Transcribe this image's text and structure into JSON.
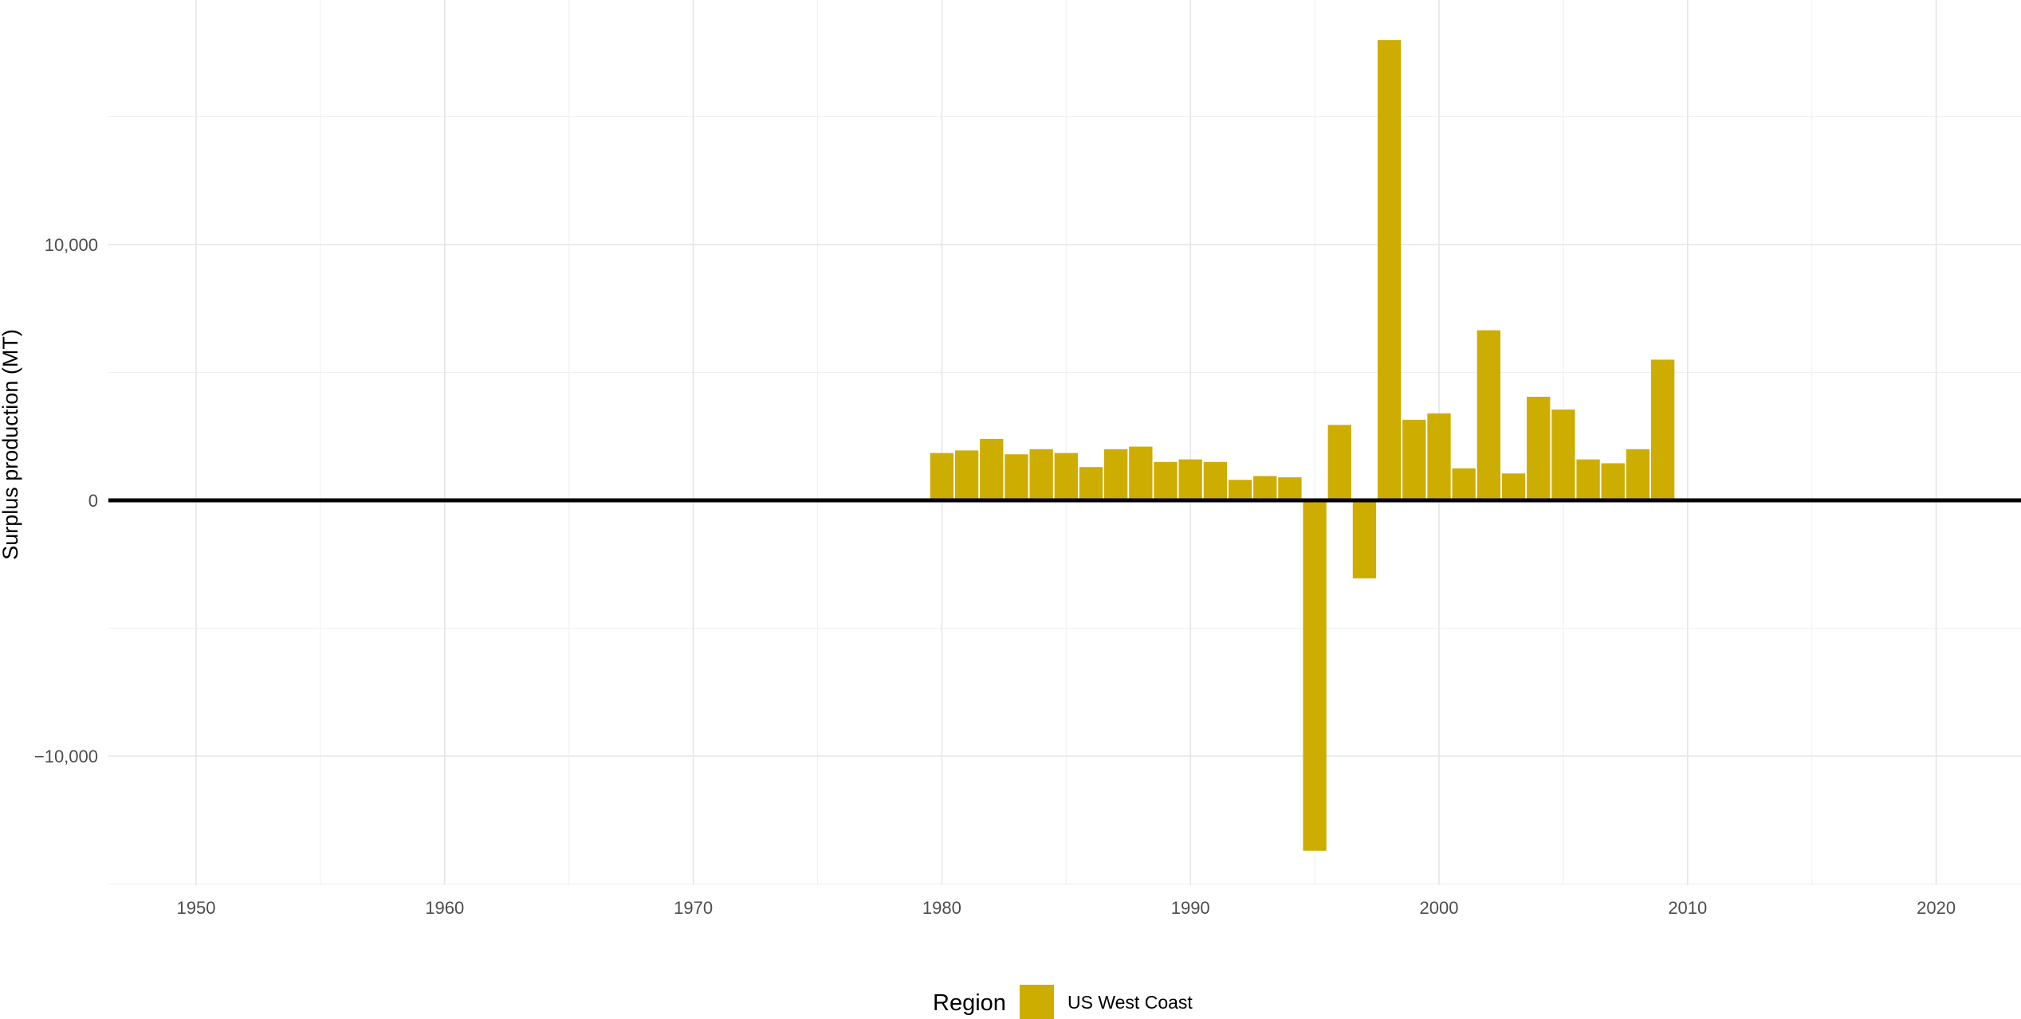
{
  "chart_data": {
    "type": "bar",
    "title": "",
    "xlabel": "",
    "ylabel": "Surplus production (MT)",
    "xlim": [
      1946.5,
      2023.5
    ],
    "ylim": [
      -15000,
      19000
    ],
    "x_ticks": [
      1950,
      1960,
      1970,
      1980,
      1990,
      2000,
      2010,
      2020
    ],
    "x_tick_labels": [
      "1950",
      "1960",
      "1970",
      "1980",
      "1990",
      "2000",
      "2010",
      "2020"
    ],
    "y_ticks": [
      -10000,
      0,
      10000
    ],
    "y_tick_labels": [
      "−10,000",
      "0",
      "10,000"
    ],
    "grid": true,
    "zero_line": true,
    "legend": {
      "title": "Region",
      "position": "bottom"
    },
    "series": [
      {
        "name": "US West Coast",
        "color": "#CCAD00",
        "x": [
          1980,
          1981,
          1982,
          1983,
          1984,
          1985,
          1986,
          1987,
          1988,
          1989,
          1990,
          1991,
          1992,
          1993,
          1994,
          1995,
          1996,
          1997,
          1998,
          1999,
          2000,
          2001,
          2002,
          2003,
          2004,
          2005,
          2006,
          2007,
          2008,
          2009
        ],
        "values": [
          1850,
          1950,
          2400,
          1800,
          2000,
          1850,
          1300,
          2000,
          2100,
          1500,
          1600,
          1500,
          800,
          950,
          900,
          -13700,
          2950,
          -3050,
          18000,
          3150,
          3400,
          1250,
          6650,
          1050,
          4050,
          3550,
          1600,
          1450,
          2000,
          5500
        ]
      }
    ]
  }
}
